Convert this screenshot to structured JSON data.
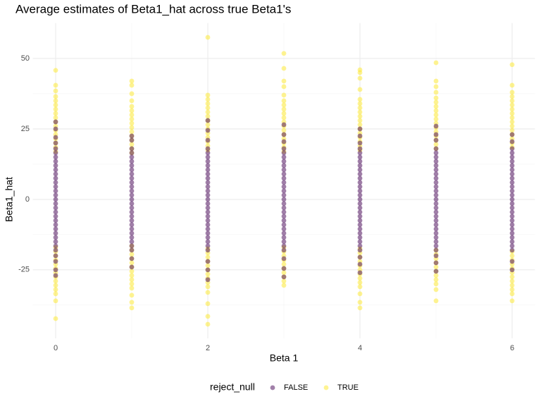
{
  "chart_data": {
    "type": "scatter",
    "title": "Average estimates of Beta1_hat across true Beta1's",
    "x_label": "Beta 1",
    "y_label": "Beta1_hat",
    "legend_title": "reject_null",
    "legend_position": "bottom",
    "xlim": [
      -0.3,
      6.3
    ],
    "xticks": [
      0,
      2,
      4,
      6
    ],
    "xminor": [
      1,
      3,
      5
    ],
    "ylim": [
      -49.3,
      62.6
    ],
    "yticks": [
      -25,
      0,
      25,
      50
    ],
    "yminor": [
      -37.5,
      -12.5,
      12.5,
      37.5
    ],
    "grid": true,
    "alpha": 0.5,
    "series": [
      {
        "name": "FALSE",
        "color": "#440154",
        "x": [
          0,
          1,
          2,
          3,
          4,
          5,
          6
        ],
        "values": [
          [
            -27,
            -25,
            -22,
            -20,
            -18,
            -16.5,
            -15,
            -13.5,
            -12,
            -10.5,
            -9,
            -7.5,
            -6,
            -4.5,
            -3,
            -1.5,
            0,
            1.5,
            3,
            4.5,
            6,
            7.5,
            9,
            10.5,
            12,
            13.5,
            15,
            16.5,
            18,
            20,
            22,
            25,
            27.5
          ],
          [
            -24,
            -21,
            -18,
            -16.5,
            -15,
            -13.5,
            -12,
            -10.5,
            -9,
            -7.5,
            -6,
            -4.5,
            -3,
            -1.5,
            0,
            1.5,
            3,
            4.5,
            6,
            7.5,
            9,
            10.5,
            12,
            13.5,
            15,
            16.5,
            18,
            21,
            22.5
          ],
          [
            -28.5,
            -25,
            -22,
            -18,
            -16.5,
            -15,
            -13.5,
            -12,
            -10.5,
            -9,
            -7.5,
            -6,
            -4.5,
            -3,
            -1.5,
            0,
            1.5,
            3,
            4.5,
            6,
            7.5,
            9,
            10.5,
            12,
            13.5,
            15,
            16.5,
            18,
            21,
            24.5,
            28
          ],
          [
            -27.5,
            -24.5,
            -21,
            -18,
            -16.5,
            -15,
            -13.5,
            -12,
            -10.5,
            -9,
            -7.5,
            -6,
            -4.5,
            -3,
            -1.5,
            0,
            1.5,
            3,
            4.5,
            6,
            7.5,
            9,
            10.5,
            12,
            13.5,
            15,
            16.5,
            18,
            20.5,
            23,
            26.5
          ],
          [
            -26,
            -23,
            -20.5,
            -18,
            -16.5,
            -15,
            -13.5,
            -12,
            -10.5,
            -9,
            -7.5,
            -6,
            -4.5,
            -3,
            -1.5,
            0,
            1.5,
            3,
            4.5,
            6,
            7.5,
            9,
            10.5,
            12,
            13.5,
            15,
            16.5,
            18,
            20,
            22.5,
            25
          ],
          [
            -25.5,
            -22.5,
            -20,
            -18,
            -16.5,
            -15,
            -13.5,
            -12,
            -10.5,
            -9,
            -7.5,
            -6,
            -4.5,
            -3,
            -1.5,
            0,
            1.5,
            3,
            4.5,
            6,
            7.5,
            9,
            10.5,
            12,
            13.5,
            15,
            16.5,
            18,
            21,
            23,
            26
          ],
          [
            -25,
            -22,
            -18,
            -16.5,
            -15,
            -13.5,
            -12,
            -10.5,
            -9,
            -7.5,
            -6,
            -4.5,
            -3,
            -1.5,
            0,
            1.5,
            3,
            4.5,
            6,
            7.5,
            9,
            10.5,
            12,
            13.5,
            15,
            16.5,
            18,
            20.5,
            23
          ]
        ]
      },
      {
        "name": "TRUE",
        "color": "#FDE725",
        "x": [
          0,
          1,
          2,
          3,
          4,
          5,
          6
        ],
        "values": [
          [
            -42.3,
            -36,
            -33.5,
            -32,
            -30.5,
            -29,
            -27.5,
            -26,
            -24.5,
            -23,
            -21.5,
            -20,
            -18.5,
            -17,
            17,
            18.5,
            20,
            21.5,
            23,
            24.5,
            26,
            27.5,
            29,
            30.5,
            32,
            33.5,
            35,
            36.5,
            38.5,
            40.5,
            45.8
          ],
          [
            -38.5,
            -36.5,
            -34,
            -31.5,
            -30,
            -28.5,
            -27,
            -25.5,
            -24,
            -22.5,
            -21,
            -19.5,
            -18,
            -16.5,
            16.5,
            18,
            19.5,
            21,
            22.5,
            24,
            25.5,
            27,
            28.5,
            30,
            31.5,
            33,
            35,
            37.5,
            40.5,
            42
          ],
          [
            -44.3,
            -41.5,
            -37,
            -33,
            -31,
            -29.5,
            -28,
            -26.5,
            -25,
            -23.5,
            -22,
            -20.5,
            -19,
            -17.5,
            17.5,
            19,
            20.5,
            22,
            23.5,
            25,
            26.5,
            28,
            29.5,
            31,
            32.5,
            34,
            35.5,
            37,
            57.5
          ],
          [
            -30.5,
            -29,
            -27.5,
            -26,
            -24.5,
            -23,
            -21.5,
            -20,
            -18.5,
            -17,
            17,
            18.5,
            20,
            21.5,
            23,
            24.5,
            26,
            27.5,
            29,
            30.5,
            32,
            33.5,
            35,
            37,
            40,
            42,
            46.5,
            51.8
          ],
          [
            -38.5,
            -36.5,
            -33.5,
            -31,
            -29.5,
            -28,
            -26.5,
            -25,
            -23.5,
            -22,
            -20.5,
            -19,
            -17.5,
            17.5,
            19,
            20.5,
            22,
            23.5,
            25,
            26.5,
            28,
            29.5,
            31,
            32.5,
            34,
            35.5,
            39,
            43,
            45,
            46
          ],
          [
            -36,
            -32,
            -30,
            -28.5,
            -27,
            -25.5,
            -24,
            -22.5,
            -21,
            -19.5,
            -18,
            18,
            19.5,
            21,
            22.5,
            24,
            25.5,
            27,
            28.5,
            30,
            31.5,
            33,
            34.5,
            36,
            38,
            40,
            42,
            48.5
          ],
          [
            -36,
            -33.5,
            -32,
            -30.5,
            -29,
            -27.5,
            -26,
            -24.5,
            -23,
            -21.5,
            -20,
            -18.5,
            18.5,
            20,
            21.5,
            23,
            24.5,
            26,
            27.5,
            29,
            30.5,
            32,
            33.5,
            35,
            36.5,
            38,
            40.5,
            47.8
          ]
        ]
      }
    ]
  }
}
